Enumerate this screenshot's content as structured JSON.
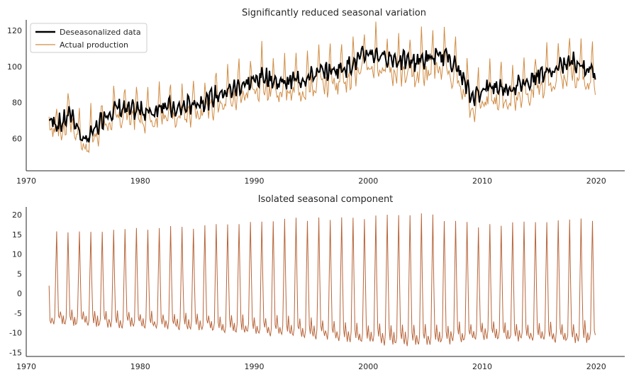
{
  "chart_data": [
    {
      "type": "line",
      "title": "Significantly reduced seasonal variation",
      "xlabel": "",
      "ylabel": "",
      "xlim": [
        1970,
        2022.5
      ],
      "ylim": [
        42,
        126
      ],
      "xticks": [
        1970,
        1980,
        1990,
        2000,
        2010,
        2020
      ],
      "yticks": [
        60,
        80,
        100,
        120
      ],
      "grid": false,
      "legend": "top-left",
      "x_start": 1972.0,
      "x_end": 2019.95,
      "series": [
        {
          "name": "Deseasonalized data",
          "color": "#000000",
          "trend": [
            [
              1972,
              70
            ],
            [
              1973,
              68
            ],
            [
              1974,
              74
            ],
            [
              1975,
              58
            ],
            [
              1976,
              64
            ],
            [
              1977,
              74
            ],
            [
              1978,
              77
            ],
            [
              1979,
              75
            ],
            [
              1980,
              76
            ],
            [
              1981,
              74
            ],
            [
              1982,
              80
            ],
            [
              1983,
              75
            ],
            [
              1984,
              78
            ],
            [
              1985,
              80
            ],
            [
              1986,
              82
            ],
            [
              1987,
              85
            ],
            [
              1988,
              87
            ],
            [
              1989,
              90
            ],
            [
              1990,
              92
            ],
            [
              1991,
              95
            ],
            [
              1992,
              91
            ],
            [
              1993,
              92
            ],
            [
              1994,
              93
            ],
            [
              1995,
              95
            ],
            [
              1996,
              97
            ],
            [
              1997,
              98
            ],
            [
              1998,
              100
            ],
            [
              1999,
              103
            ],
            [
              2000,
              108
            ],
            [
              2001,
              106
            ],
            [
              2002,
              105
            ],
            [
              2003,
              103
            ],
            [
              2004,
              103
            ],
            [
              2005,
              104
            ],
            [
              2006,
              105
            ],
            [
              2007,
              106
            ],
            [
              2008,
              97
            ],
            [
              2009,
              83
            ],
            [
              2010,
              87
            ],
            [
              2011,
              89
            ],
            [
              2012,
              88
            ],
            [
              2013,
              89
            ],
            [
              2014,
              92
            ],
            [
              2015,
              96
            ],
            [
              2016,
              97
            ],
            [
              2017,
              100
            ],
            [
              2018,
              103
            ],
            [
              2019,
              100
            ],
            [
              2020,
              96
            ]
          ]
        },
        {
          "name": "Actual production",
          "color": "#d08c44",
          "note_values": "deseasonalized trend plus seasonal component"
        }
      ]
    },
    {
      "type": "line",
      "title": "Isolated seasonal component",
      "xlabel": "",
      "ylabel": "",
      "xlim": [
        1970,
        2022.5
      ],
      "ylim": [
        -16,
        22
      ],
      "xticks": [
        1970,
        1980,
        1990,
        2000,
        2010,
        2020
      ],
      "yticks": [
        -15,
        -10,
        -5,
        0,
        5,
        10,
        15,
        20
      ],
      "grid": false,
      "series": [
        {
          "name": "",
          "color": "#b8653a",
          "x_start": 1972.0,
          "x_end": 2019.95,
          "annual_peak": [
            [
              1972,
              15.5
            ],
            [
              1980,
              16.5
            ],
            [
              1985,
              17
            ],
            [
              1990,
              18.5
            ],
            [
              1995,
              19
            ],
            [
              2000,
              19.5
            ],
            [
              2005,
              20
            ],
            [
              2010,
              17
            ],
            [
              2015,
              18
            ],
            [
              2019,
              19
            ]
          ],
          "annual_trough": [
            [
              1972,
              -7.5
            ],
            [
              1980,
              -8.5
            ],
            [
              1985,
              -9
            ],
            [
              1990,
              -10
            ],
            [
              1995,
              -11
            ],
            [
              2000,
              -12.5
            ],
            [
              2005,
              -13
            ],
            [
              2010,
              -11.5
            ],
            [
              2015,
              -12
            ],
            [
              2019,
              -12
            ]
          ]
        }
      ]
    }
  ]
}
